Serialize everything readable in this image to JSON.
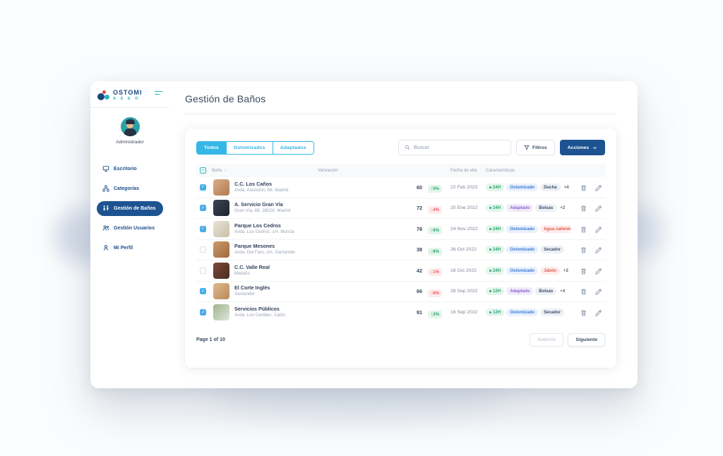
{
  "page": {
    "title": "Gestión de Baños"
  },
  "sidebar": {
    "logo": {
      "line1": "OSTOMI",
      "line2": "A S E O"
    },
    "user": {
      "name": "Administrador"
    },
    "items": [
      {
        "label": "Escritorio",
        "icon": "desktop",
        "active": false
      },
      {
        "label": "Categorías",
        "icon": "categories",
        "active": false
      },
      {
        "label": "Gestión de Baños",
        "icon": "restroom",
        "active": true
      },
      {
        "label": "Gestión Usuarios",
        "icon": "users",
        "active": false
      },
      {
        "label": "Mi Perfil",
        "icon": "profile",
        "active": false
      }
    ]
  },
  "toolbar": {
    "tabs": [
      {
        "label": "Todos",
        "active": true
      },
      {
        "label": "Ostomizados",
        "active": false
      },
      {
        "label": "Adaptados",
        "active": false
      }
    ],
    "search_placeholder": "Buscar",
    "filters_label": "Filtros",
    "actions_label": "Acciones"
  },
  "table": {
    "columns": [
      "Baño",
      "Valoración",
      "Fecha de alta",
      "Características"
    ],
    "header_checkbox": "indeterminate",
    "rows": [
      {
        "name": "C.C. Los Caños",
        "address": "Avda. Asunción, 56. Madrid",
        "checked": true,
        "rating": 60,
        "trend": {
          "dir": "up",
          "value": "5%"
        },
        "date": "22 Feb 2023",
        "badges": [
          {
            "label": "24H",
            "variant": "green",
            "dot": true
          },
          {
            "label": "Ostomizado",
            "variant": "blue"
          },
          {
            "label": "Ducha",
            "variant": "slate"
          },
          {
            "label": "+4",
            "variant": "plain"
          }
        ],
        "thumb": [
          "#dcae85",
          "#b07a52"
        ]
      },
      {
        "name": "A. Servicio Gran Vía",
        "address": "Gran Vía, 68. 28028. Madrid",
        "checked": true,
        "rating": 72,
        "trend": {
          "dir": "down",
          "value": "4%"
        },
        "date": "20 Ene 2022",
        "badges": [
          {
            "label": "24H",
            "variant": "green",
            "dot": true
          },
          {
            "label": "Adaptado",
            "variant": "purple"
          },
          {
            "label": "Bolsas",
            "variant": "slate"
          },
          {
            "label": "+2",
            "variant": "plain"
          }
        ],
        "thumb": [
          "#3c4654",
          "#1d232e"
        ]
      },
      {
        "name": "Parque Los Cedros",
        "address": "Avda. Los Cedros, s/n. Murcia",
        "checked": true,
        "rating": 78,
        "trend": {
          "dir": "up",
          "value": "6%"
        },
        "date": "24 Nov 2022",
        "badges": [
          {
            "label": "24H",
            "variant": "green",
            "dot": true
          },
          {
            "label": "Ostomizado",
            "variant": "blue"
          },
          {
            "label": "Agua caliente",
            "variant": "red"
          }
        ],
        "thumb": [
          "#e8e2d6",
          "#c9bfa9"
        ]
      },
      {
        "name": "Parque Mesones",
        "address": "Avda. Del Faro, s/n. Santander",
        "checked": false,
        "rating": 38,
        "trend": {
          "dir": "up",
          "value": "8%"
        },
        "date": "26 Oct 2022",
        "badges": [
          {
            "label": "24H",
            "variant": "green",
            "dot": true
          },
          {
            "label": "Ostomizado",
            "variant": "blue"
          },
          {
            "label": "Secador",
            "variant": "slate"
          }
        ],
        "thumb": [
          "#cf9a68",
          "#9c6a3e"
        ]
      },
      {
        "name": "C.C. Valle Real",
        "address": "Maliaño",
        "checked": false,
        "rating": 42,
        "trend": {
          "dir": "down",
          "value": "1%"
        },
        "date": "18 Oct 2022",
        "badges": [
          {
            "label": "24H",
            "variant": "green",
            "dot": true
          },
          {
            "label": "Ostomizado",
            "variant": "blue"
          },
          {
            "label": "Jabón",
            "variant": "red"
          },
          {
            "label": "+2",
            "variant": "plain"
          }
        ],
        "thumb": [
          "#7a4a3a",
          "#4a2c22"
        ]
      },
      {
        "name": "El Corte Inglés",
        "address": "Santander",
        "checked": true,
        "rating": 66,
        "trend": {
          "dir": "down",
          "value": "6%"
        },
        "date": "28 Sep 2022",
        "badges": [
          {
            "label": "12H",
            "variant": "green",
            "dot": true
          },
          {
            "label": "Adaptado",
            "variant": "purple"
          },
          {
            "label": "Bolsas",
            "variant": "slate"
          },
          {
            "label": "+4",
            "variant": "plain"
          }
        ],
        "thumb": [
          "#e0b98e",
          "#b98a5c"
        ]
      },
      {
        "name": "Servicios Públicos",
        "address": "Avda. Los Cantiles. Cádiz.",
        "checked": true,
        "rating": 91,
        "trend": {
          "dir": "up",
          "value": "2%"
        },
        "date": "16 Sep 2022",
        "badges": [
          {
            "label": "12H",
            "variant": "green",
            "dot": true
          },
          {
            "label": "Ostomizado",
            "variant": "blue"
          },
          {
            "label": "Secador",
            "variant": "slate"
          }
        ],
        "thumb": [
          "#9fb58a",
          "#dfe5dc"
        ]
      }
    ],
    "pagination": {
      "status": "Page 1 of 10",
      "prev": "Anterior",
      "next": "Siguiente"
    }
  },
  "colors": {
    "accent_cyan": "#35b7e6",
    "navy": "#1d5390",
    "bar_fill": "#4db9ea",
    "trend_up": "#2aa972",
    "trend_down": "#ee5a60",
    "badge_blue": "#3a7bd5",
    "badge_purple": "#8a63cf",
    "badge_red": "#e4574f"
  }
}
